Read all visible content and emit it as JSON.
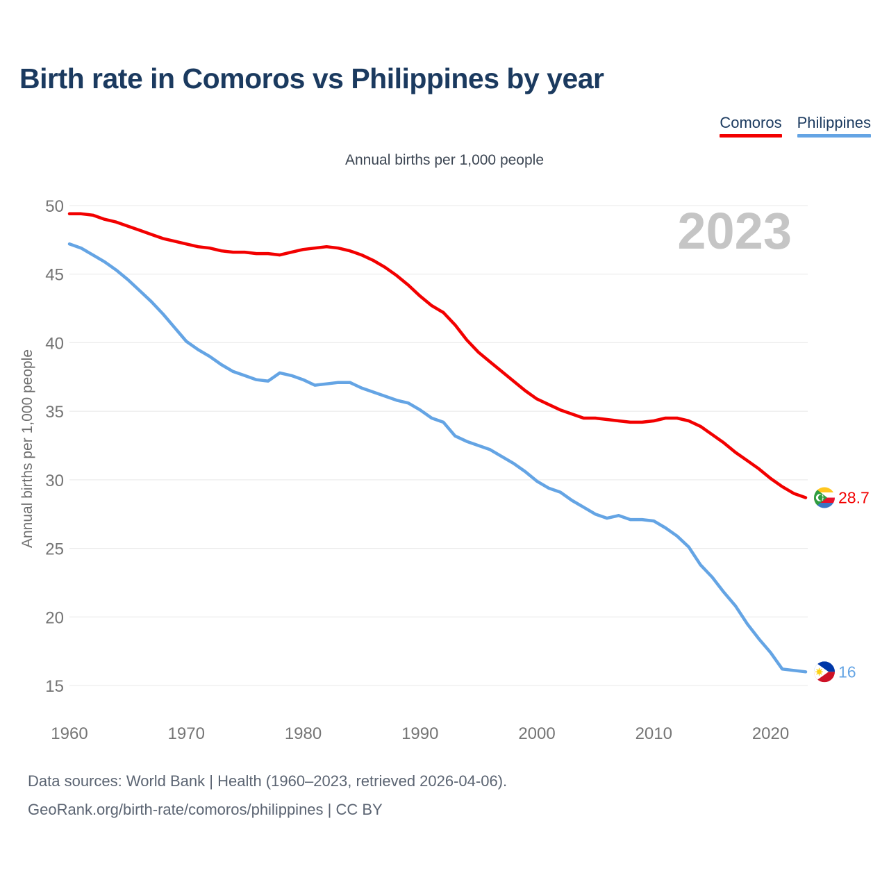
{
  "header": {
    "title": "Birth rate in Comoros vs Philippines by year"
  },
  "subtitle": "Annual births per 1,000 people",
  "footer": {
    "line1": "Data sources: World Bank | Health (1960–2023, retrieved 2026-04-06).",
    "line2": "GeoRank.org/birth-rate/comoros/philippines | CC BY"
  },
  "chart_data": {
    "type": "line",
    "title": "Birth rate in Comoros vs Philippines by year",
    "subtitle": "Annual births per 1,000 people",
    "ylabel": "Annual births per 1,000 people",
    "watermark": "2023",
    "grid": true,
    "legend_position": "top-right",
    "x_start": 1960,
    "x_end": 2023,
    "x_step": 1,
    "xticks": [
      1960,
      1970,
      1980,
      1990,
      2000,
      2010,
      2020
    ],
    "yticks": [
      15,
      20,
      25,
      30,
      35,
      40,
      45,
      50
    ],
    "ylim": [
      15,
      50
    ],
    "colors": {
      "comoros": "#f20000",
      "philippines": "#64a4e4",
      "title": "#1b3a5f",
      "axis_text": "#757575",
      "watermark": "#c5c5c5",
      "grid": "#e8e8e8"
    },
    "series": [
      {
        "name": "Comoros",
        "color": "#f20000",
        "end_label": "28.7",
        "end_value": 28.7,
        "values": [
          49.4,
          49.4,
          49.3,
          49.0,
          48.8,
          48.5,
          48.2,
          47.9,
          47.6,
          47.4,
          47.2,
          47.0,
          46.9,
          46.7,
          46.6,
          46.6,
          46.5,
          46.5,
          46.4,
          46.6,
          46.8,
          46.9,
          47.0,
          46.9,
          46.7,
          46.4,
          46.0,
          45.5,
          44.9,
          44.2,
          43.4,
          42.7,
          42.2,
          41.3,
          40.2,
          39.3,
          38.6,
          37.9,
          37.2,
          36.5,
          35.9,
          35.5,
          35.1,
          34.8,
          34.5,
          34.5,
          34.4,
          34.3,
          34.2,
          34.2,
          34.3,
          34.5,
          34.5,
          34.3,
          33.9,
          33.3,
          32.7,
          32.0,
          31.4,
          30.8,
          30.1,
          29.5,
          29.0,
          28.7
        ]
      },
      {
        "name": "Philippines",
        "color": "#64a4e4",
        "end_label": "16",
        "end_value": 16.0,
        "values": [
          47.2,
          46.9,
          46.4,
          45.9,
          45.3,
          44.6,
          43.8,
          43.0,
          42.1,
          41.1,
          40.1,
          39.5,
          39.0,
          38.4,
          37.9,
          37.6,
          37.3,
          37.2,
          37.8,
          37.6,
          37.3,
          36.9,
          37.0,
          37.1,
          37.1,
          36.7,
          36.4,
          36.1,
          35.8,
          35.6,
          35.1,
          34.5,
          34.2,
          33.2,
          32.8,
          32.5,
          32.2,
          31.7,
          31.2,
          30.6,
          29.9,
          29.4,
          29.1,
          28.5,
          28.0,
          27.5,
          27.2,
          27.4,
          27.1,
          27.1,
          27.0,
          26.5,
          25.9,
          25.1,
          23.8,
          22.9,
          21.8,
          20.8,
          19.5,
          18.4,
          17.4,
          16.2,
          16.1,
          16.0
        ]
      }
    ]
  }
}
